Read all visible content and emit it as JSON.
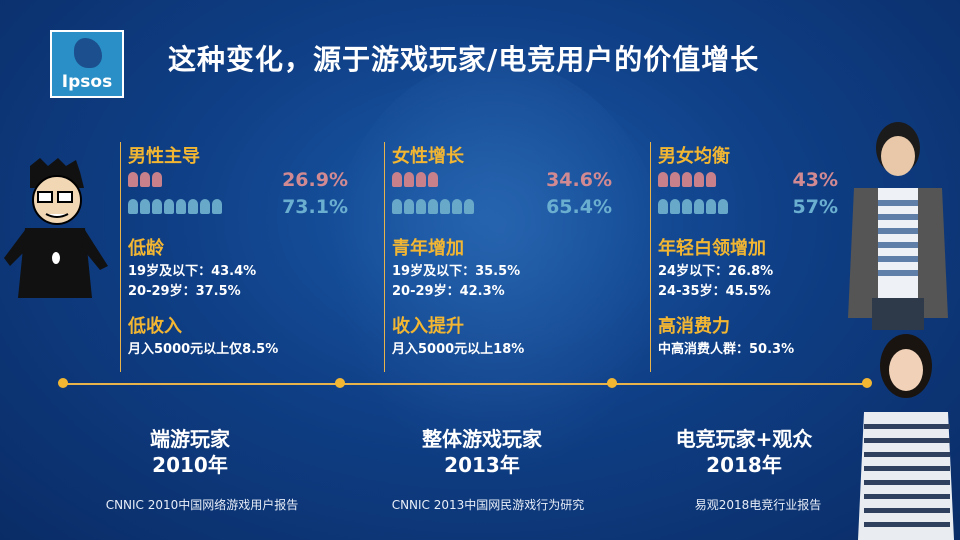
{
  "slide": {
    "title": "这种变化，源于游戏玩家/电竞用户的价值增长",
    "logo_text": "Ipsos"
  },
  "columns": [
    {
      "gender_head": "男性主导",
      "female_pct": "26.9%",
      "male_pct": "73.1%",
      "age_head": "低龄",
      "age_lines": [
        "19岁及以下：43.4%",
        "20-29岁：37.5%"
      ],
      "income_head": "低收入",
      "income_line": "月入5000元以上仅8.5%",
      "era_label": "端游玩家",
      "era_year": "2010年",
      "source": "CNNIC 2010中国网络游戏用户报告"
    },
    {
      "gender_head": "女性增长",
      "female_pct": "34.6%",
      "male_pct": "65.4%",
      "age_head": "青年增加",
      "age_lines": [
        "19岁及以下：35.5%",
        "20-29岁：42.3%"
      ],
      "income_head": "收入提升",
      "income_line": "月入5000元以上18%",
      "era_label": "整体游戏玩家",
      "era_year": "2013年",
      "source": "CNNIC 2013中国网民游戏行为研究"
    },
    {
      "gender_head": "男女均衡",
      "female_pct": "43%",
      "male_pct": "57%",
      "age_head": "年轻白领增加",
      "age_lines": [
        "24岁以下：26.8%",
        "24-35岁：45.5%"
      ],
      "income_head": "高消费力",
      "income_line": "中高消费人群：50.3%",
      "era_label": "电竞玩家+观众",
      "era_year": "2018年",
      "source": "易观2018电竞行业报告"
    }
  ],
  "icon_counts": {
    "female": [
      3,
      4,
      5
    ],
    "male": [
      8,
      7,
      6
    ]
  },
  "colors": {
    "accent": "#f2b632",
    "female": "#d28a92",
    "male": "#6aaed0",
    "background": "#0f3f86"
  }
}
